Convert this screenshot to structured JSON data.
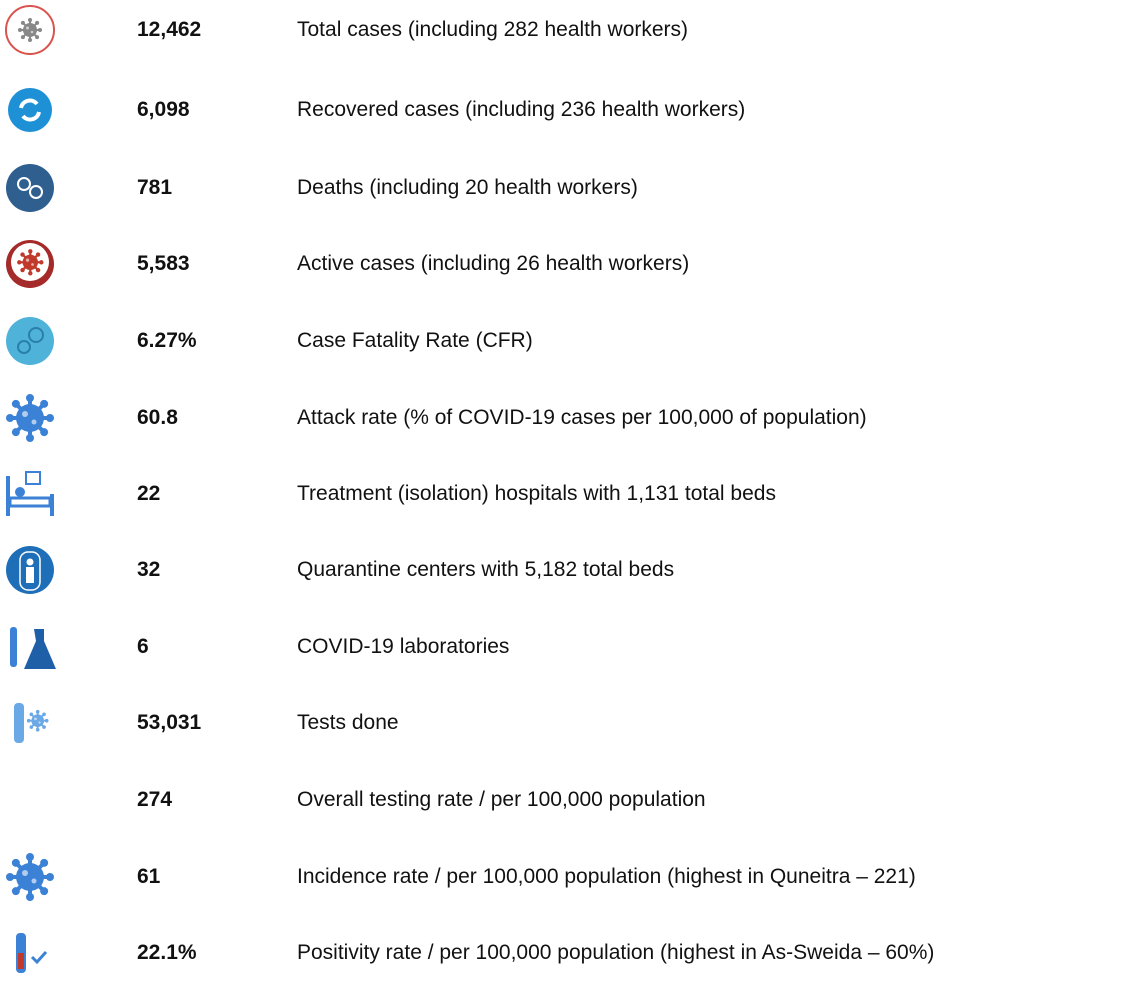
{
  "items": [
    {
      "value": "12,462",
      "label": "Total cases (including 282 health workers)"
    },
    {
      "value": "6,098",
      "label": "Recovered cases (including 236 health workers)"
    },
    {
      "value": "781",
      "label": "Deaths (including 20 health workers)"
    },
    {
      "value": "5,583",
      "label": "Active cases (including 26 health workers)"
    },
    {
      "value": "6.27%",
      "label": "Case Fatality Rate (CFR)"
    },
    {
      "value": "60.8",
      "label": "Attack rate (% of COVID-19 cases per 100,000 of population)"
    },
    {
      "value": "22",
      "label": "Treatment (isolation) hospitals with 1,131 total beds"
    },
    {
      "value": "32",
      "label": "Quarantine centers with 5,182 total beds"
    },
    {
      "value": "6",
      "label": "COVID-19 laboratories"
    },
    {
      "value": "53,031",
      "label": "Tests done"
    },
    {
      "value": "274",
      "label": "Overall testing rate / per 100,000 population"
    },
    {
      "value": "61",
      "label": "Incidence rate / per 100,000 population (highest in Quneitra – 221)"
    },
    {
      "value": "22.1%",
      "label": "Positivity rate /  per 100,000 population (highest in As-Sweida – 60%)"
    }
  ]
}
